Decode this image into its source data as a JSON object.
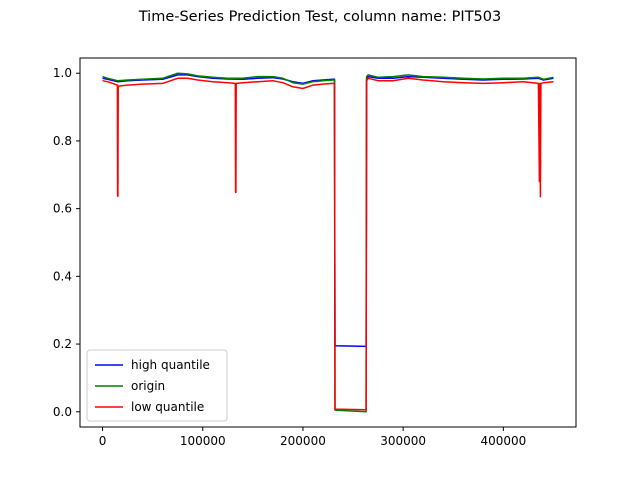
{
  "chart_data": {
    "type": "line",
    "title": "Time-Series Prediction Test, column name: PIT503",
    "xlabel": "",
    "ylabel": "",
    "xlim": [
      -22500,
      472500
    ],
    "ylim": [
      -0.045,
      1.045
    ],
    "xticks": [
      0,
      100000,
      200000,
      300000,
      400000
    ],
    "xtick_labels": [
      "0",
      "100000",
      "200000",
      "300000",
      "400000"
    ],
    "yticks": [
      0.0,
      0.2,
      0.4,
      0.6,
      0.8,
      1.0
    ],
    "ytick_labels": [
      "0.0",
      "0.2",
      "0.4",
      "0.6",
      "0.8",
      "1.0"
    ],
    "grid": false,
    "legend_placement": "lower-left",
    "series": [
      {
        "name": "high quantile",
        "color": "#0000ff",
        "x": [
          0,
          5000,
          15000,
          25000,
          40000,
          60000,
          75000,
          85000,
          95000,
          110000,
          125000,
          140000,
          155000,
          170000,
          180000,
          190000,
          200000,
          210000,
          220000,
          230000,
          231500,
          232000,
          263000,
          263500,
          265000,
          275000,
          290000,
          305000,
          320000,
          340000,
          360000,
          380000,
          400000,
          420000,
          435000,
          440000,
          450000
        ],
        "y": [
          0.985,
          0.982,
          0.975,
          0.978,
          0.98,
          0.982,
          0.995,
          0.995,
          0.99,
          0.985,
          0.983,
          0.982,
          0.985,
          0.987,
          0.983,
          0.975,
          0.97,
          0.978,
          0.98,
          0.982,
          0.982,
          0.195,
          0.193,
          0.985,
          0.99,
          0.985,
          0.985,
          0.99,
          0.988,
          0.985,
          0.982,
          0.98,
          0.982,
          0.983,
          0.985,
          0.98,
          0.985
        ]
      },
      {
        "name": "origin",
        "color": "#008000",
        "x": [
          0,
          5000,
          15000,
          25000,
          40000,
          60000,
          75000,
          85000,
          95000,
          110000,
          125000,
          140000,
          155000,
          170000,
          180000,
          190000,
          200000,
          210000,
          220000,
          230000,
          231500,
          232000,
          263000,
          263500,
          265000,
          275000,
          290000,
          305000,
          320000,
          340000,
          360000,
          380000,
          400000,
          420000,
          435000,
          440000,
          450000
        ],
        "y": [
          0.99,
          0.985,
          0.978,
          0.98,
          0.982,
          0.985,
          1.0,
          0.998,
          0.992,
          0.988,
          0.985,
          0.985,
          0.99,
          0.99,
          0.985,
          0.972,
          0.968,
          0.975,
          0.978,
          0.98,
          0.98,
          0.005,
          0.0,
          0.99,
          0.995,
          0.988,
          0.99,
          0.995,
          0.99,
          0.988,
          0.985,
          0.983,
          0.985,
          0.985,
          0.988,
          0.982,
          0.988
        ]
      },
      {
        "name": "low quantile",
        "color": "#ff0000",
        "x": [
          0,
          5000,
          14800,
          15000,
          15300,
          15600,
          25000,
          40000,
          60000,
          75000,
          85000,
          95000,
          110000,
          125000,
          132500,
          132800,
          133100,
          133400,
          140000,
          155000,
          170000,
          180000,
          190000,
          200000,
          210000,
          220000,
          230000,
          231500,
          232000,
          263000,
          263500,
          265000,
          275000,
          290000,
          305000,
          320000,
          340000,
          360000,
          380000,
          400000,
          420000,
          435000,
          436000,
          436500,
          437000,
          437500,
          438000,
          440000,
          450000
        ],
        "y": [
          0.978,
          0.975,
          0.965,
          0.637,
          0.637,
          0.962,
          0.965,
          0.968,
          0.97,
          0.985,
          0.985,
          0.98,
          0.975,
          0.972,
          0.97,
          0.648,
          0.648,
          0.97,
          0.972,
          0.975,
          0.978,
          0.972,
          0.96,
          0.955,
          0.965,
          0.968,
          0.97,
          0.97,
          0.008,
          0.006,
          0.978,
          0.985,
          0.978,
          0.978,
          0.985,
          0.98,
          0.975,
          0.972,
          0.97,
          0.972,
          0.975,
          0.97,
          0.68,
          0.97,
          0.635,
          0.97,
          0.97,
          0.972,
          0.975
        ]
      }
    ]
  }
}
